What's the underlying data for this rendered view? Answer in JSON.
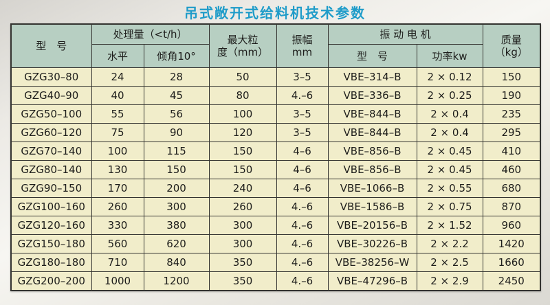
{
  "page": {
    "title": "吊式敞开式给料机技术参数"
  },
  "colors": {
    "title": "#1f9cc9",
    "header_bg": "#b7cfc2",
    "row_bg": "#f1edca",
    "border": "#333330"
  },
  "table": {
    "headers": {
      "model": "型　号",
      "capacity_group": "处理量（<t/h）",
      "capacity_horizontal": "水平",
      "capacity_incline": "倾角10°",
      "max_particle": "最大粒\n度（mm）",
      "amplitude": "振幅\nmm",
      "motor_group": "振 动 电 机",
      "motor_model": "型　号",
      "motor_power": "功率kw",
      "mass": "质量\n（kg）"
    },
    "column_keys": [
      "model",
      "horizontal",
      "incline",
      "max_particle",
      "amplitude",
      "motor_model",
      "power",
      "mass"
    ],
    "rows": [
      {
        "model": "GZG30–80",
        "horizontal": "24",
        "incline": "28",
        "max_particle": "50",
        "amplitude": "3–5",
        "motor_model": "VBE–314–B",
        "power": "2 × 0.12",
        "mass": "150"
      },
      {
        "model": "GZG40–90",
        "horizontal": "40",
        "incline": "45",
        "max_particle": "80",
        "amplitude": "4.–6",
        "motor_model": "VBE–336–B",
        "power": "2 × 0.25",
        "mass": "190"
      },
      {
        "model": "GZG50–100",
        "horizontal": "55",
        "incline": "56",
        "max_particle": "100",
        "amplitude": "3–5",
        "motor_model": "VBE–844–B",
        "power": "2 × 0.4",
        "mass": "235"
      },
      {
        "model": "GZG60–120",
        "horizontal": "75",
        "incline": "90",
        "max_particle": "120",
        "amplitude": "3–5",
        "motor_model": "VBE–844–B",
        "power": "2 × 0.4",
        "mass": "295"
      },
      {
        "model": "GZG70–140",
        "horizontal": "100",
        "incline": "115",
        "max_particle": "150",
        "amplitude": "4–6",
        "motor_model": "VBE–856–B",
        "power": "2 × 0.45",
        "mass": "410"
      },
      {
        "model": "GZG80–140",
        "horizontal": "130",
        "incline": "150",
        "max_particle": "150",
        "amplitude": "4–6",
        "motor_model": "VBE–856–B",
        "power": "2 × 0.45",
        "mass": "460"
      },
      {
        "model": "GZG90–150",
        "horizontal": "170",
        "incline": "200",
        "max_particle": "240",
        "amplitude": "4–6",
        "motor_model": "VBE–1066–B",
        "power": "2 × 0.55",
        "mass": "680"
      },
      {
        "model": "GZG100–160",
        "horizontal": "260",
        "incline": "300",
        "max_particle": "260",
        "amplitude": "4.–6",
        "motor_model": "VBE–1586–B",
        "power": "2 × 0.75",
        "mass": "870"
      },
      {
        "model": "GZG120–160",
        "horizontal": "330",
        "incline": "380",
        "max_particle": "300",
        "amplitude": "4.–6",
        "motor_model": "VBE–20156–B",
        "power": "2 × 1.52",
        "mass": "960"
      },
      {
        "model": "GZG150–180",
        "horizontal": "560",
        "incline": "620",
        "max_particle": "300",
        "amplitude": "4.–6",
        "motor_model": "VBE–30226–B",
        "power": "2 × 2.2",
        "mass": "1420"
      },
      {
        "model": "GZG180–180",
        "horizontal": "710",
        "incline": "840",
        "max_particle": "350",
        "amplitude": "4.–6",
        "motor_model": "VBE–38256–W",
        "power": "2 × 2.5",
        "mass": "1660"
      },
      {
        "model": "GZG200–200",
        "horizontal": "1000",
        "incline": "1200",
        "max_particle": "350",
        "amplitude": "4.–6",
        "motor_model": "VBE–47296–B",
        "power": "2 × 2.9",
        "mass": "2450"
      }
    ]
  }
}
